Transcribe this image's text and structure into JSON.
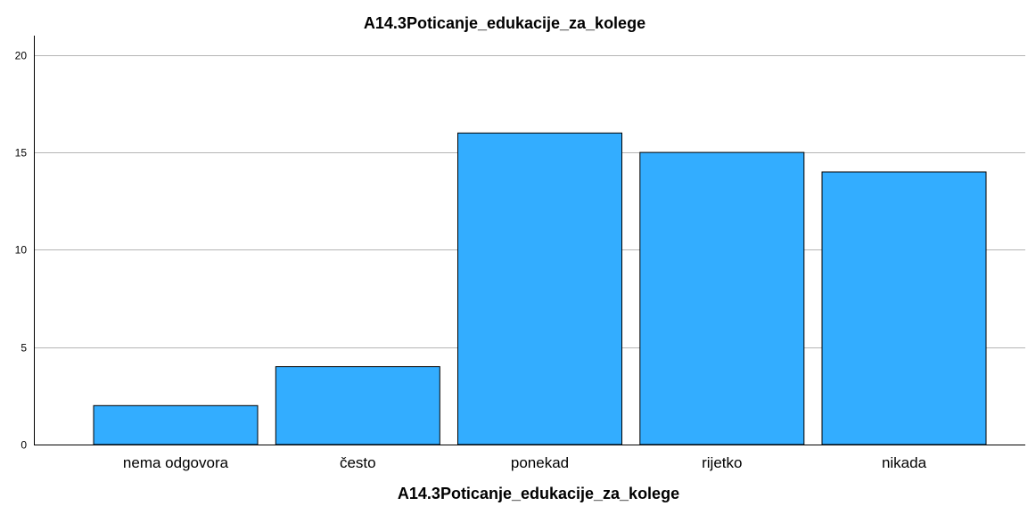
{
  "chart_data": {
    "type": "bar",
    "title": "A14.3Poticanje_edukacije_za_kolege",
    "xlabel": "A14.3Poticanje_edukacije_za_kolege",
    "ylabel": "",
    "categories": [
      "nema odgovora",
      "često",
      "ponekad",
      "rijetko",
      "nikada"
    ],
    "values": [
      2,
      4,
      16,
      15,
      14
    ],
    "ylim": [
      0,
      21
    ],
    "yticks": [
      0,
      5,
      10,
      15,
      20
    ],
    "grid": true,
    "legend": "none",
    "bar_color": "#33adff"
  }
}
